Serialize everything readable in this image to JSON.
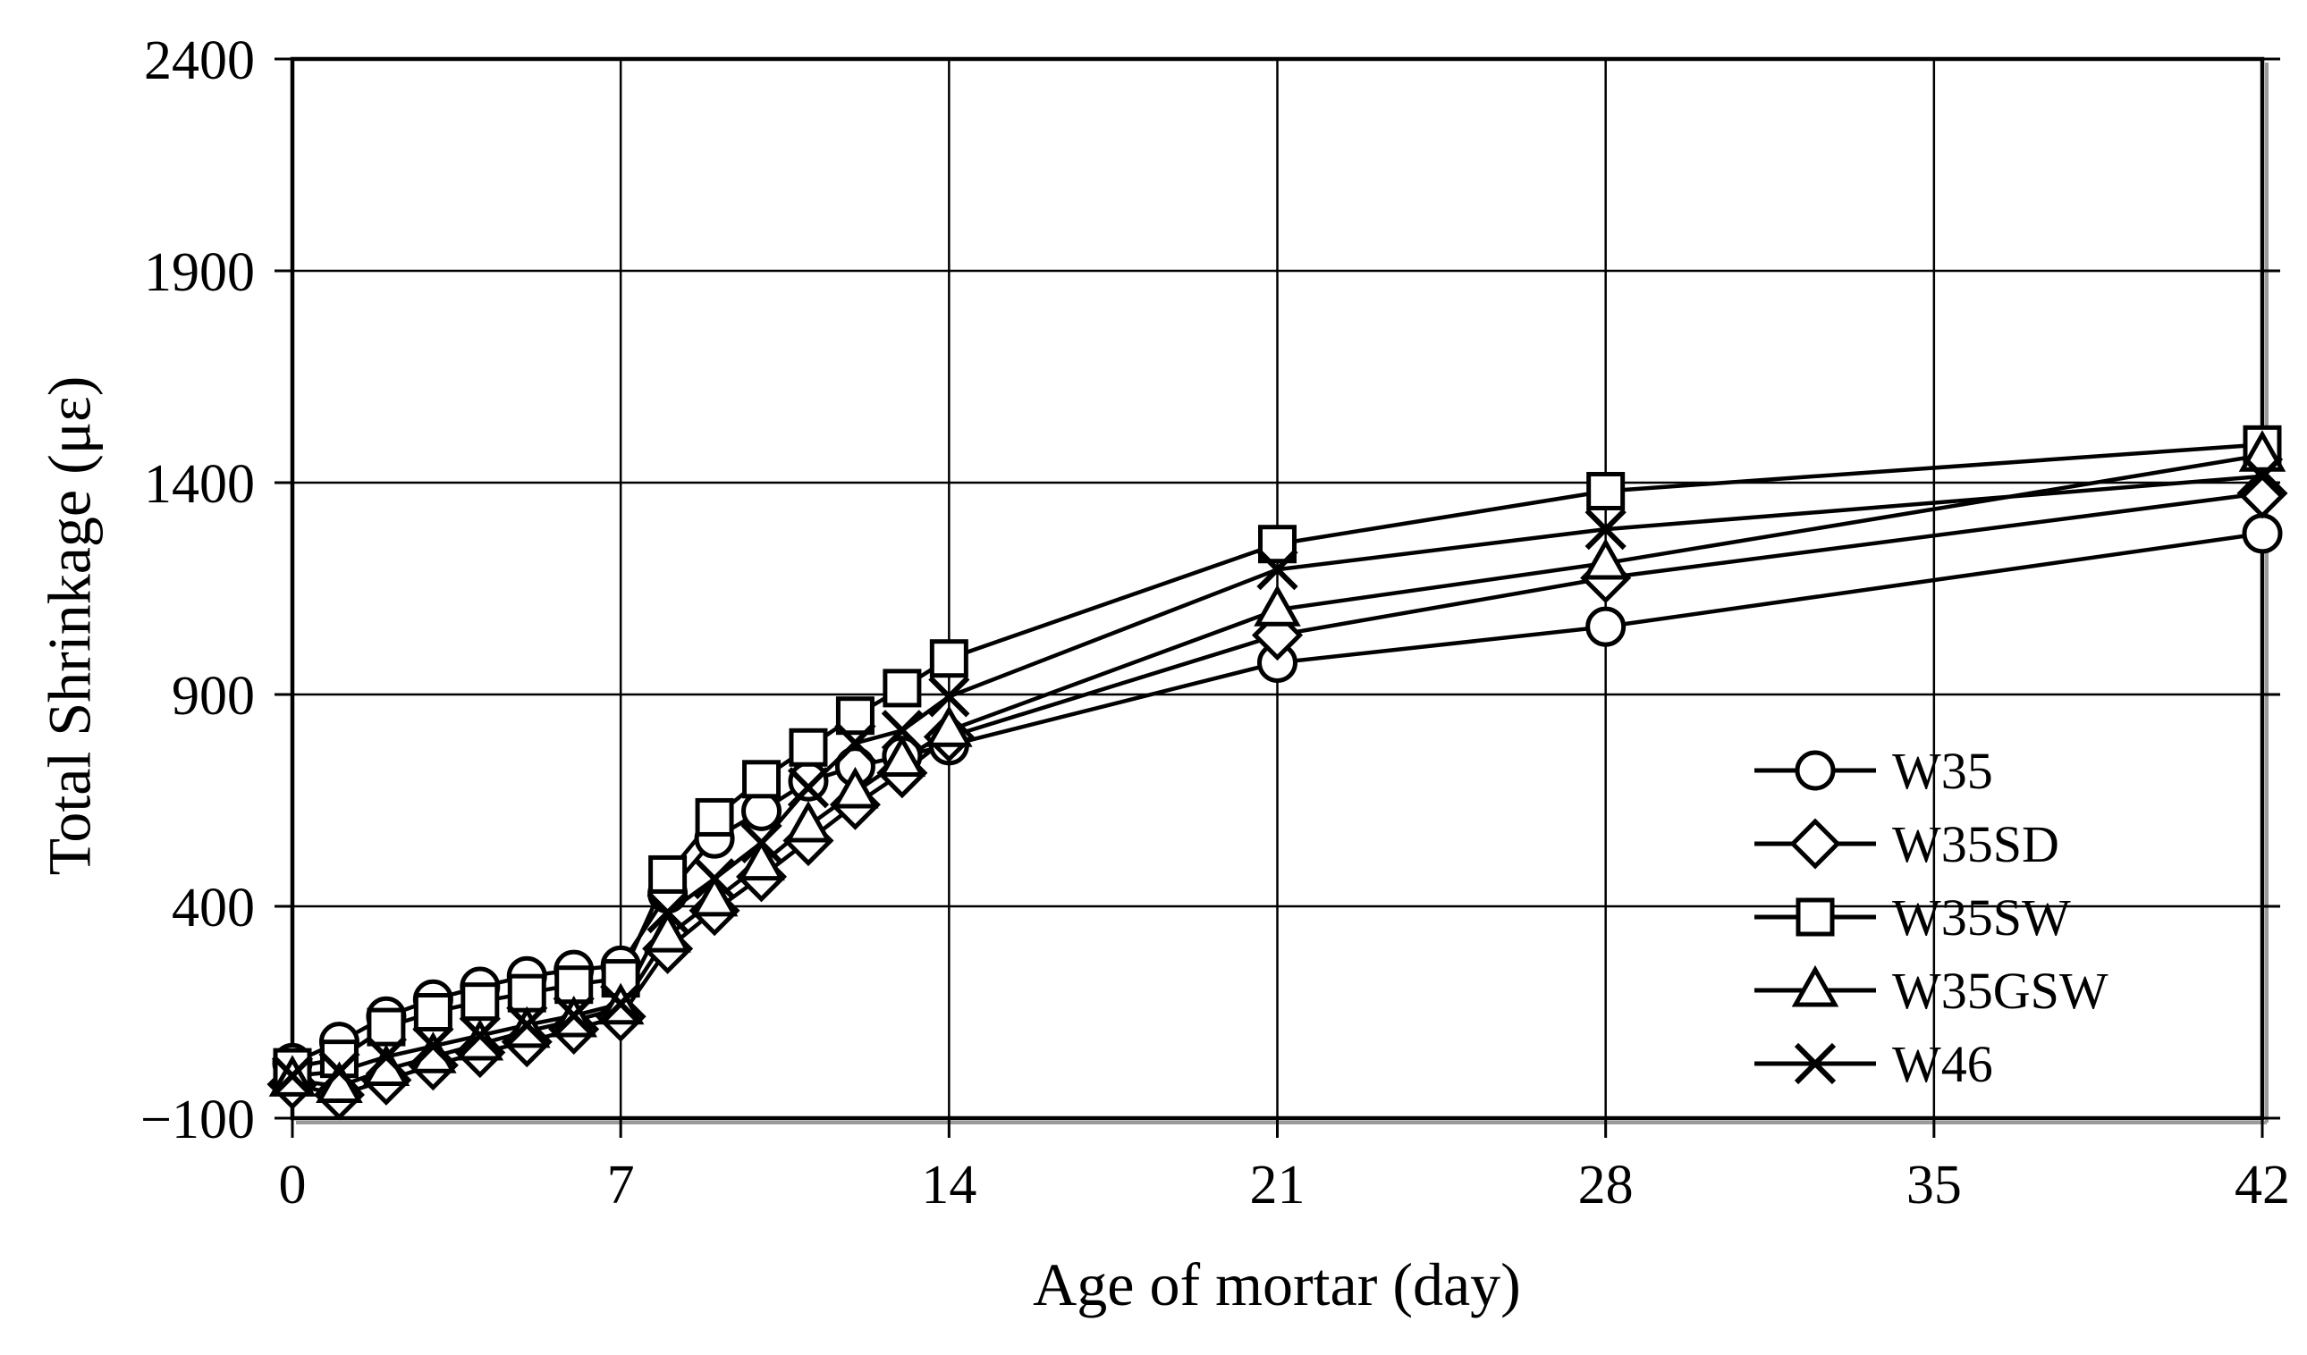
{
  "figure": {
    "background": "#ffffff",
    "line_color": "#000000",
    "marker_fill": "#ffffff",
    "shadow_color": "#9a9a9a"
  },
  "chart_data": {
    "type": "line",
    "title": "",
    "xlabel": "Age of mortar (day)",
    "ylabel": "Total Shrinkage (με)",
    "xlim": [
      0,
      42
    ],
    "ylim": [
      -100,
      2400
    ],
    "x_ticks": [
      0,
      7,
      14,
      21,
      28,
      35,
      42
    ],
    "y_ticks": [
      -100,
      400,
      900,
      1400,
      1900,
      2400
    ],
    "y_tick_labels": [
      "−100",
      "400",
      "900",
      "1400",
      "1900",
      "2400"
    ],
    "grid": true,
    "legend_position": "inside lower right",
    "x": [
      0,
      1,
      2,
      3,
      4,
      5,
      6,
      7,
      8,
      9,
      10,
      11,
      12,
      13,
      14,
      21,
      28,
      42
    ],
    "series": [
      {
        "name": "W35",
        "marker": "circle",
        "values": [
          30,
          80,
          140,
          180,
          210,
          235,
          250,
          260,
          430,
          560,
          625,
          695,
          730,
          755,
          780,
          975,
          1060,
          1280
        ]
      },
      {
        "name": "W35SD",
        "marker": "diamond",
        "values": [
          -20,
          -45,
          -10,
          25,
          55,
          80,
          110,
          140,
          300,
          390,
          470,
          555,
          640,
          715,
          800,
          1040,
          1175,
          1375
        ]
      },
      {
        "name": "W35SW",
        "marker": "square",
        "values": [
          20,
          40,
          115,
          150,
          175,
          195,
          215,
          230,
          475,
          610,
          700,
          775,
          850,
          915,
          985,
          1255,
          1380,
          1490
        ]
      },
      {
        "name": "W35GSW",
        "marker": "triangle",
        "values": [
          -10,
          -25,
          15,
          45,
          75,
          105,
          130,
          160,
          330,
          415,
          500,
          590,
          670,
          745,
          815,
          1100,
          1210,
          1465
        ]
      },
      {
        "name": "W46",
        "marker": "x",
        "values": [
          0,
          10,
          45,
          70,
          95,
          120,
          142,
          170,
          385,
          465,
          550,
          680,
          785,
          815,
          895,
          1195,
          1290,
          1415
        ]
      }
    ]
  }
}
